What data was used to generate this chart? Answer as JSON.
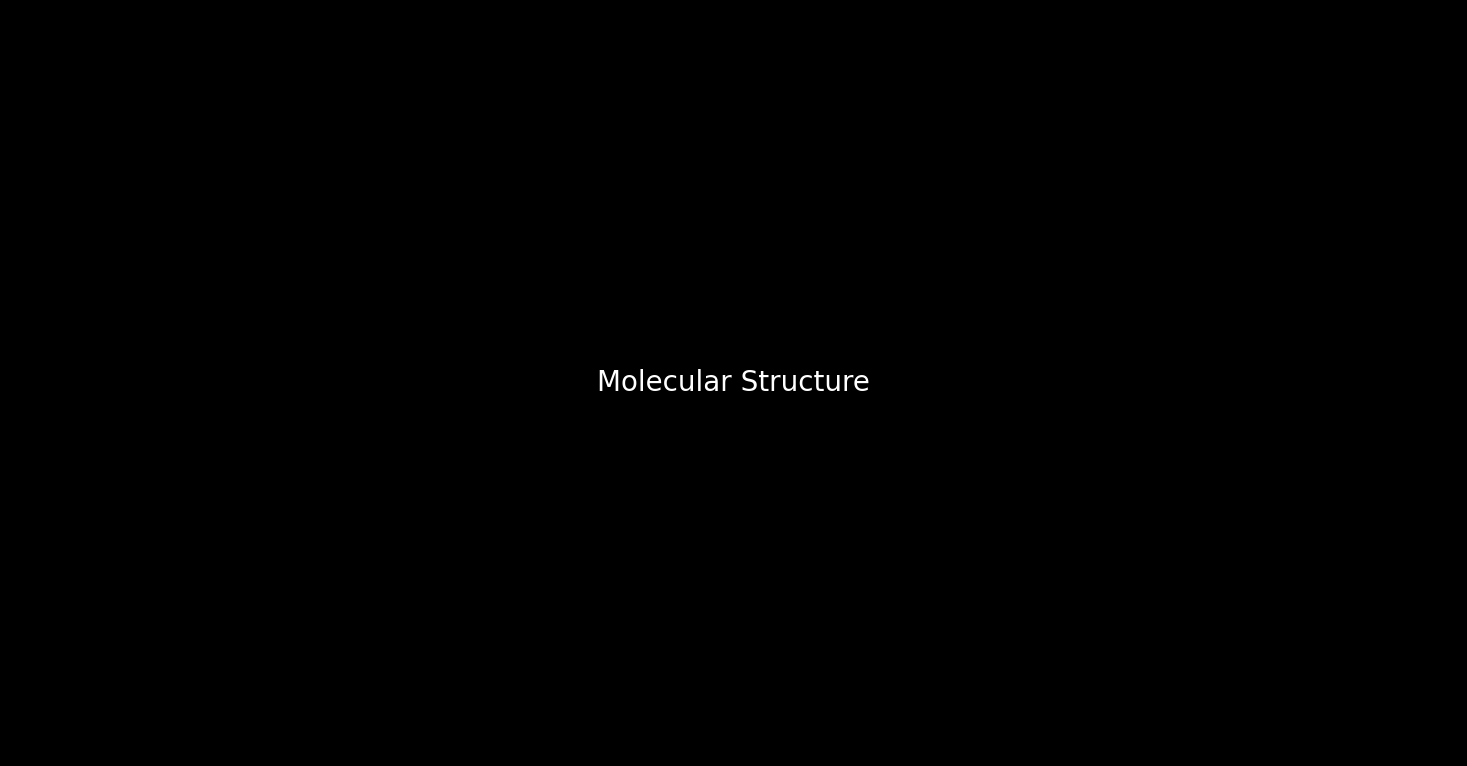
{
  "bg": "#000000",
  "bond_color": "#ffffff",
  "o_color": "#ff0000",
  "lw": 2.0,
  "fontsize_O": 15,
  "fontsize_HO": 15,
  "fig_w": 14.67,
  "fig_h": 7.66,
  "dpi": 100
}
